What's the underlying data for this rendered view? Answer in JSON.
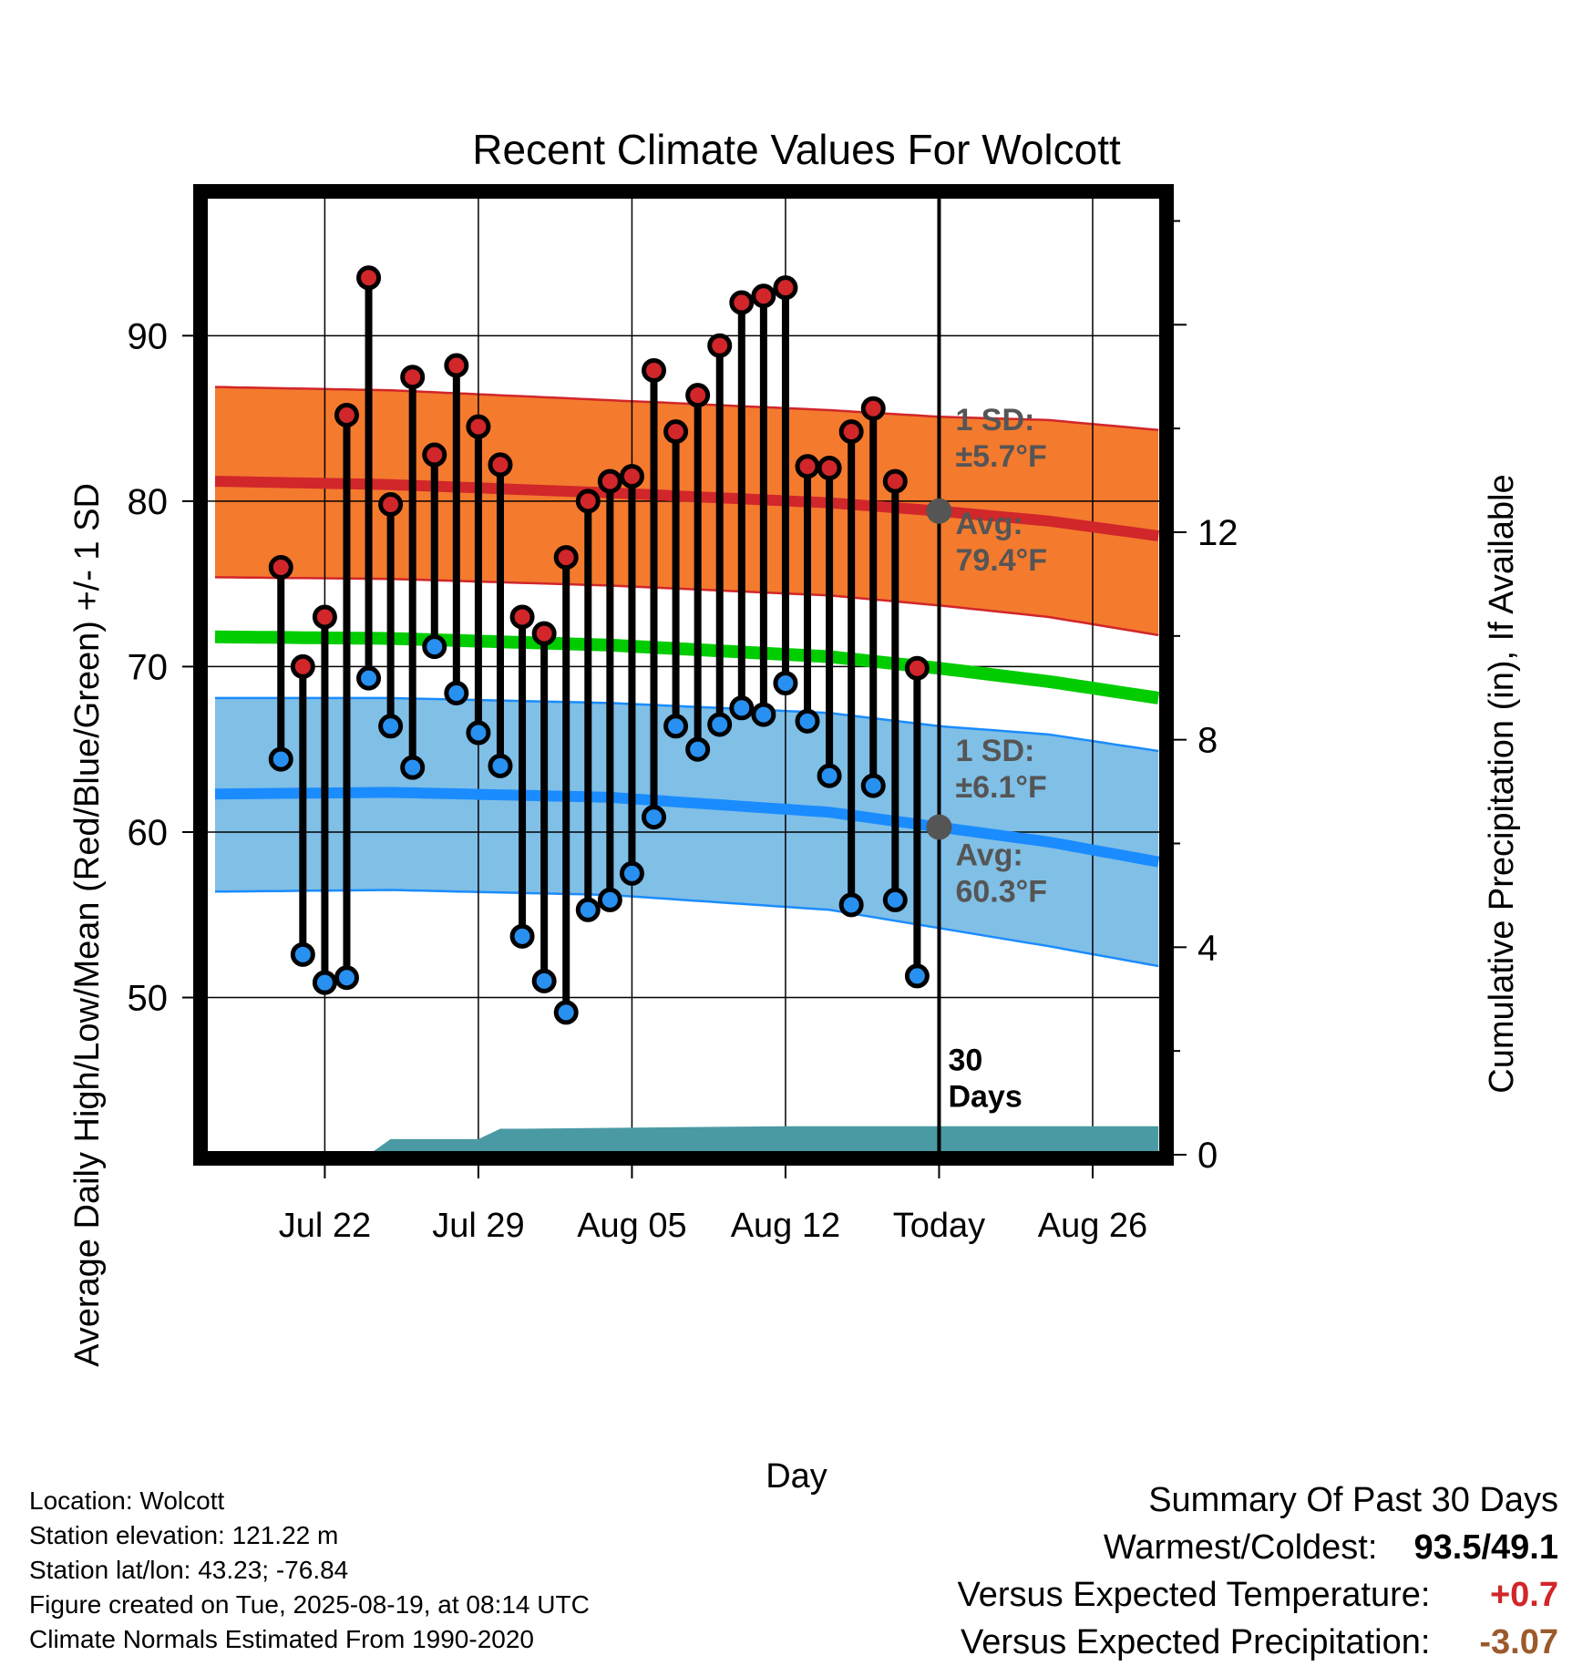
{
  "chart_data": {
    "type": "line",
    "title": "Recent Climate Values For Wolcott",
    "xlabel": "Day",
    "ylabel": "Average Daily High/Low/Mean (Red/Blue/Green) +/- 1 SD",
    "y2label": "Cumulative Precipitation (in), If Available",
    "xlim_days": [
      -33.5,
      10.2
    ],
    "ylim": [
      40.5,
      98.5
    ],
    "y2lim": [
      0,
      18.5
    ],
    "x_ticks": [
      {
        "day": -28,
        "label": "Jul 22"
      },
      {
        "day": -21,
        "label": "Jul 29"
      },
      {
        "day": -14,
        "label": "Aug 05"
      },
      {
        "day": -7,
        "label": "Aug 12"
      },
      {
        "day": 0,
        "label": "Today"
      },
      {
        "day": 7,
        "label": "Aug 26"
      }
    ],
    "y_ticks": [
      50,
      60,
      70,
      80,
      90
    ],
    "y2_ticks": [
      0,
      4,
      8,
      12
    ],
    "today_day": 0,
    "today_label": [
      "30",
      "Days"
    ],
    "highs": [
      76.0,
      70.0,
      73.0,
      85.2,
      93.5,
      79.8,
      87.5,
      82.8,
      88.2,
      84.5,
      82.2,
      73.0,
      72.0,
      76.6,
      80.0,
      81.2,
      81.5,
      87.9,
      84.2,
      86.4,
      89.4,
      92.0,
      92.4,
      92.9,
      82.1,
      82.0,
      84.2,
      85.6,
      81.2,
      69.9
    ],
    "lows": [
      64.4,
      52.6,
      50.9,
      51.2,
      69.3,
      66.4,
      63.9,
      71.2,
      68.4,
      66.0,
      64.0,
      53.7,
      51.0,
      49.1,
      55.3,
      55.9,
      57.5,
      60.9,
      66.4,
      65.0,
      66.5,
      67.5,
      67.1,
      69.0,
      66.7,
      63.4,
      55.6,
      62.8,
      55.9,
      51.3
    ],
    "normal_high": {
      "days": [
        -33,
        -25,
        -15,
        -5,
        0,
        5,
        10
      ],
      "values": [
        81.2,
        81.0,
        80.5,
        79.9,
        79.4,
        78.8,
        77.9
      ]
    },
    "normal_low": {
      "days": [
        -33,
        -25,
        -15,
        -5,
        0,
        5,
        10
      ],
      "values": [
        62.3,
        62.4,
        62.1,
        61.2,
        60.3,
        59.4,
        58.2
      ]
    },
    "normal_mean": {
      "days": [
        -33,
        -25,
        -15,
        -5,
        0,
        5,
        10
      ],
      "values": [
        71.8,
        71.7,
        71.3,
        70.6,
        69.9,
        69.1,
        68.1
      ]
    },
    "high_band_sd": 5.7,
    "low_band_sd": 6.1,
    "high_band_outer": {
      "days": [
        -33,
        -25,
        -15,
        -5,
        0,
        5,
        10
      ],
      "values": [
        86.9,
        86.7,
        86.1,
        85.5,
        85.1,
        84.9,
        84.3
      ]
    },
    "high_band_inner": {
      "days": [
        -33,
        -25,
        -15,
        -5,
        0,
        5,
        10
      ],
      "values": [
        75.4,
        75.3,
        74.9,
        74.3,
        73.7,
        73.0,
        71.9
      ]
    },
    "low_band_outer": {
      "days": [
        -33,
        -25,
        -15,
        -5,
        0,
        5,
        10
      ],
      "values": [
        68.1,
        68.1,
        67.8,
        67.2,
        66.4,
        65.9,
        64.9
      ]
    },
    "low_band_inner": {
      "days": [
        -33,
        -25,
        -15,
        -5,
        0,
        5,
        10
      ],
      "values": [
        56.4,
        56.5,
        56.2,
        55.3,
        54.2,
        53.1,
        51.9
      ]
    },
    "precip_cumulative": {
      "days": [
        -33,
        -26,
        -25,
        -21,
        -20,
        -19,
        -7,
        0,
        10
      ],
      "values": [
        0,
        0,
        0.3,
        0.3,
        0.5,
        0.5,
        0.55,
        0.55,
        0.55
      ]
    },
    "annotations": {
      "high_sd": [
        "1 SD:",
        "±5.7°F"
      ],
      "high_avg": [
        "Avg:",
        "79.4°F"
      ],
      "low_sd": [
        "1 SD:",
        "±6.1°F"
      ],
      "low_avg": [
        "Avg:",
        "60.3°F"
      ]
    },
    "today_high_avg": 79.4,
    "today_low_avg": 60.3,
    "colors": {
      "high_band": "#f47a2e",
      "high_line": "#d1262a",
      "low_band": "#80bfe6",
      "low_line": "#1a8cff",
      "mean_line": "#00cc00",
      "precip": "#4a9aa3",
      "high_dot": "#d1262a",
      "low_dot": "#2890f0",
      "annotation": "#555555"
    }
  },
  "info": {
    "location": "Location: Wolcott",
    "elevation": "Station elevation: 121.22 m",
    "latlon": "Station lat/lon: 43.23; -76.84",
    "created": "Figure created on Tue, 2025-08-19, at 08:14 UTC",
    "normals": "Climate Normals Estimated From 1990-2020"
  },
  "summary": {
    "heading": "Summary Of Past 30 Days",
    "warmest_label": "Warmest/Coldest:",
    "warmest_value": "93.5/49.1",
    "temp_label": "Versus Expected Temperature:",
    "temp_value": "+0.7",
    "precip_label": "Versus Expected Precipitation:",
    "precip_value": "-3.07",
    "temp_color": "#d1262a",
    "precip_color": "#9c5a2c"
  }
}
